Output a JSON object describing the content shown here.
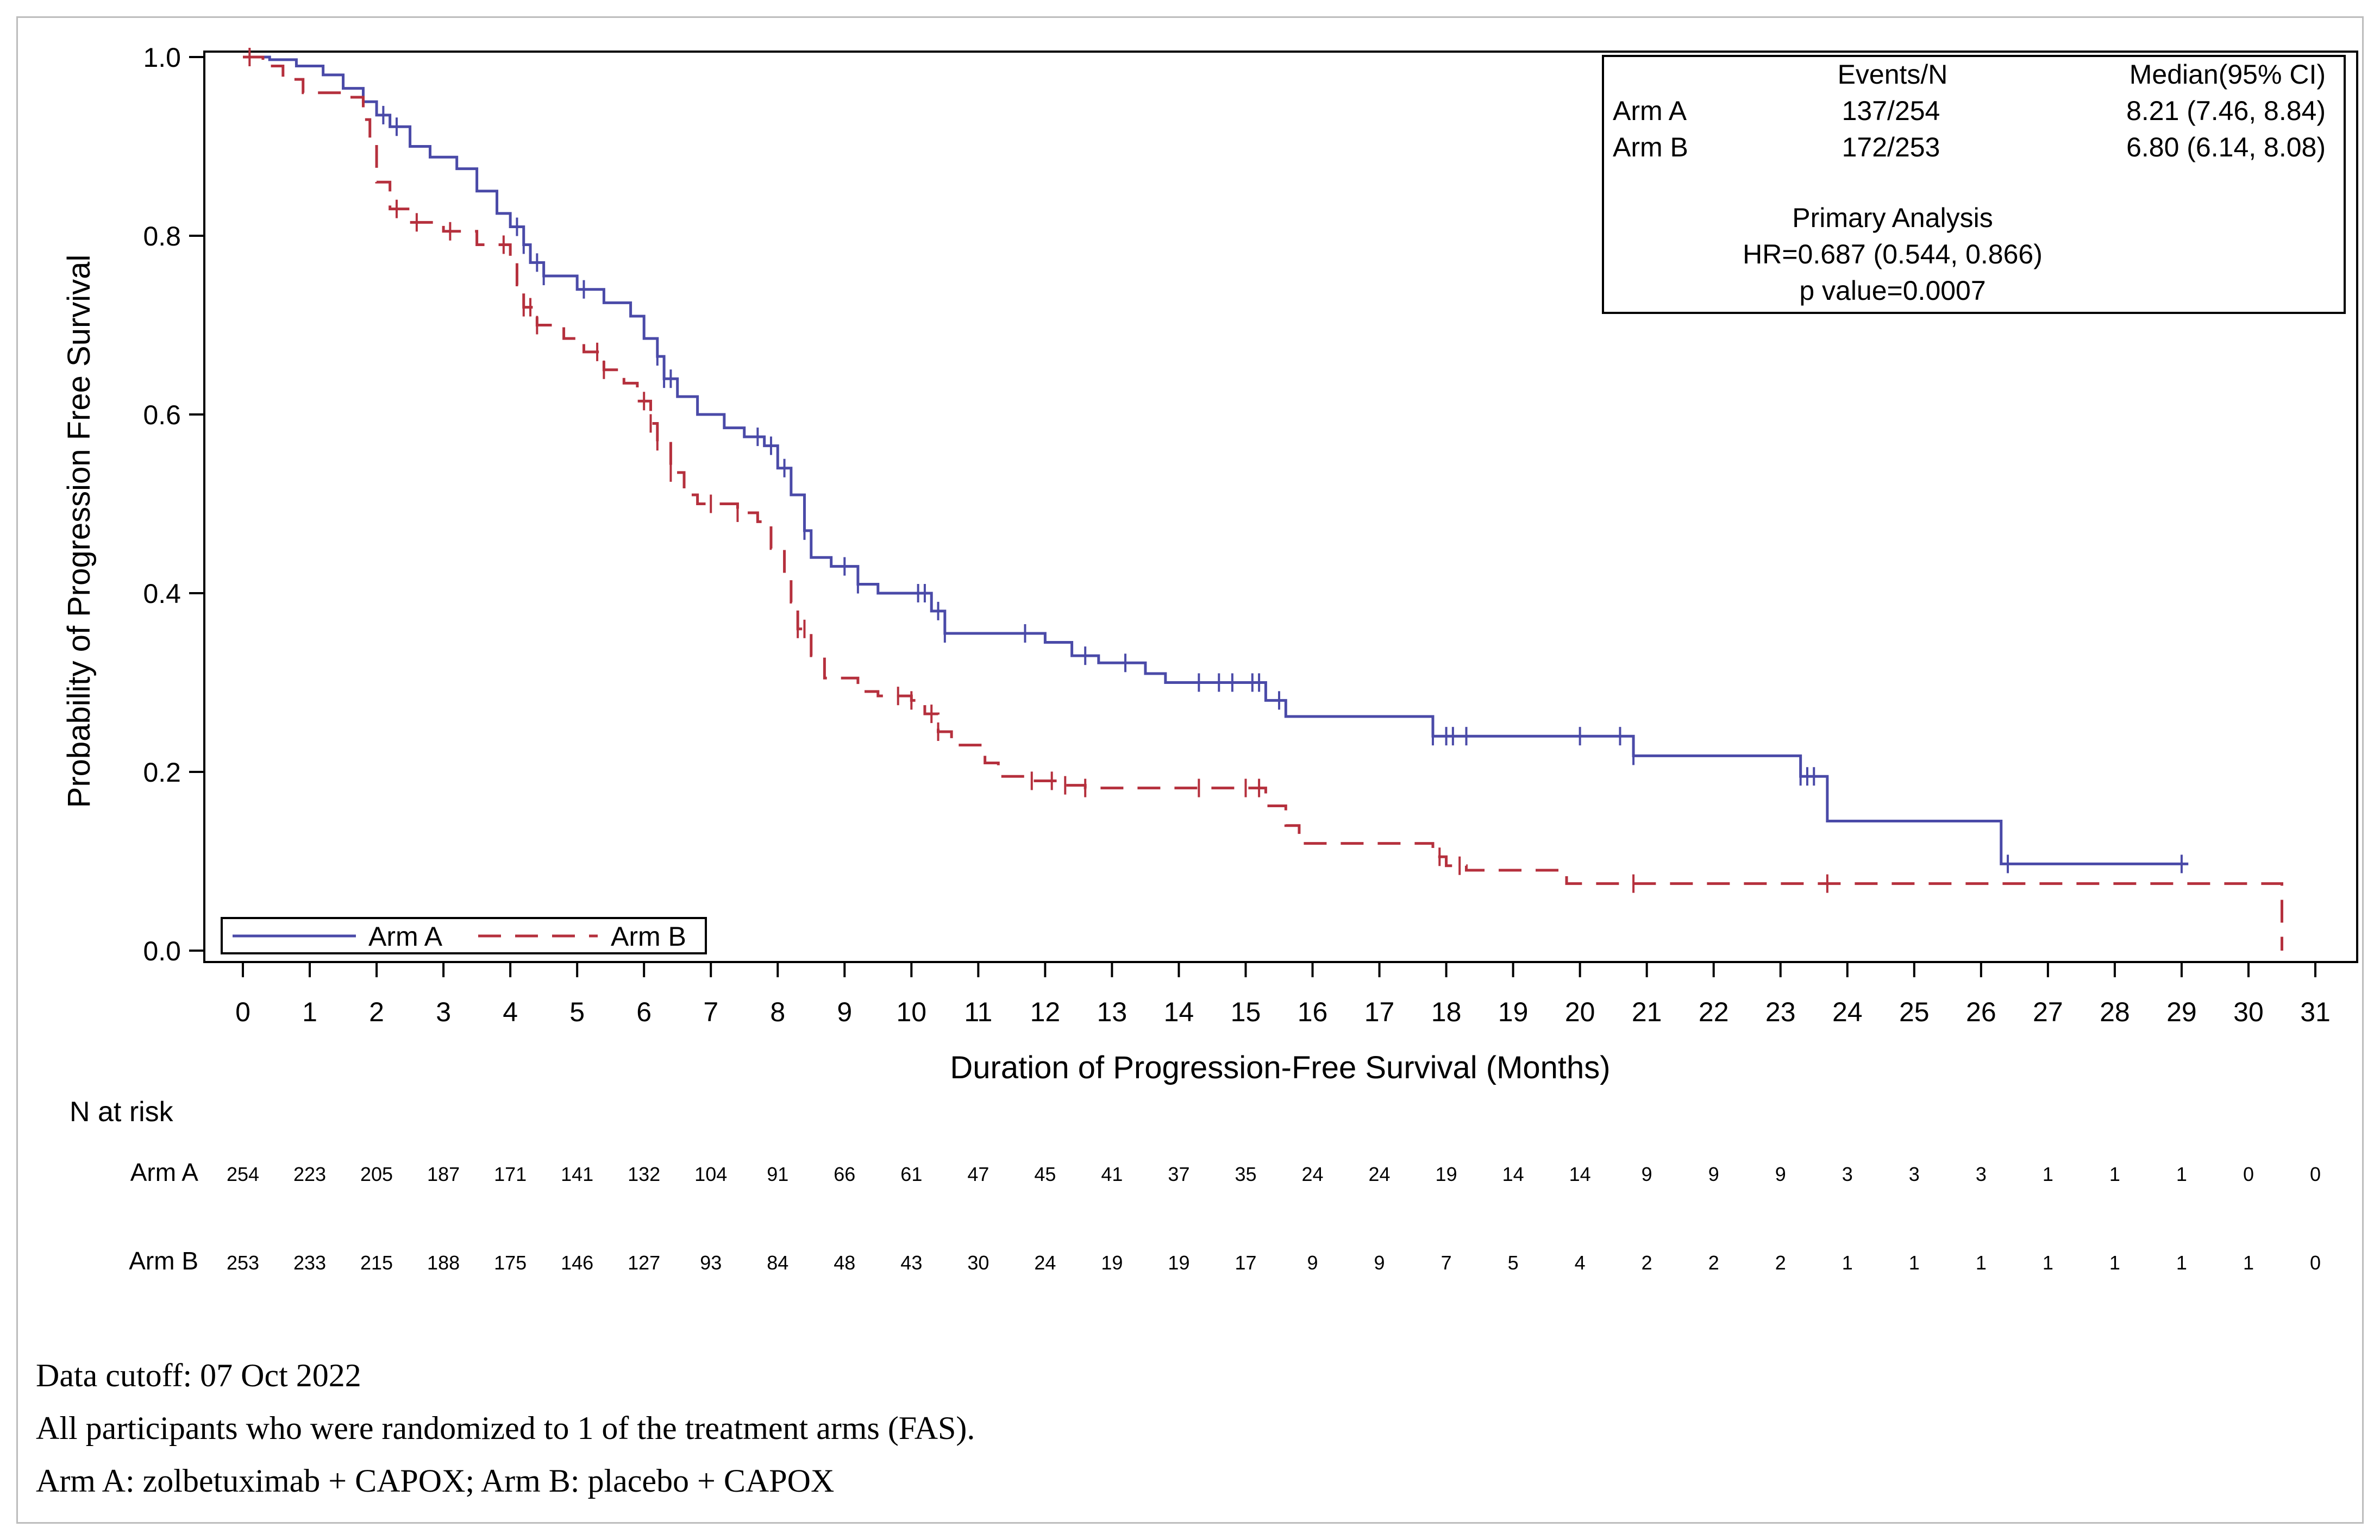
{
  "chart_data": {
    "type": "line",
    "subtype": "kaplan-meier step",
    "xlabel": "Duration of Progression-Free Survival (Months)",
    "ylabel": "Probability of Progression Free Survival",
    "xlim": [
      0,
      31
    ],
    "ylim": [
      0,
      1
    ],
    "x_ticks": [
      0,
      1,
      2,
      3,
      4,
      5,
      6,
      7,
      8,
      9,
      10,
      11,
      12,
      13,
      14,
      15,
      16,
      17,
      18,
      19,
      20,
      21,
      22,
      23,
      24,
      25,
      26,
      27,
      28,
      29,
      30,
      31
    ],
    "y_ticks": [
      "0.0",
      "0.2",
      "0.4",
      "0.6",
      "0.8",
      "1.0"
    ],
    "grid": false,
    "legend_position": "bottom-left",
    "stats_box": {
      "header": [
        "",
        "Events/N",
        "Median(95% CI)"
      ],
      "rows": [
        [
          "Arm A",
          "137/254",
          "8.21 (7.46, 8.84)"
        ],
        [
          "Arm B",
          "172/253",
          "6.80 (6.14, 8.08)"
        ]
      ],
      "analysis_title": "Primary Analysis",
      "hr": "HR=0.687 (0.544, 0.866)",
      "p_value": "p value=0.0007"
    },
    "series": [
      {
        "name": "Arm A",
        "color": "#4a4aa8",
        "dash": "solid",
        "steps": [
          [
            0,
            1.0
          ],
          [
            0.4,
            0.997
          ],
          [
            0.8,
            0.99
          ],
          [
            1.2,
            0.98
          ],
          [
            1.5,
            0.965
          ],
          [
            1.8,
            0.95
          ],
          [
            2.0,
            0.935
          ],
          [
            2.2,
            0.922
          ],
          [
            2.5,
            0.9
          ],
          [
            2.8,
            0.888
          ],
          [
            3.2,
            0.875
          ],
          [
            3.5,
            0.85
          ],
          [
            3.8,
            0.825
          ],
          [
            4.0,
            0.81
          ],
          [
            4.2,
            0.79
          ],
          [
            4.3,
            0.77
          ],
          [
            4.5,
            0.755
          ],
          [
            5.0,
            0.74
          ],
          [
            5.4,
            0.725
          ],
          [
            5.8,
            0.71
          ],
          [
            6.0,
            0.685
          ],
          [
            6.2,
            0.665
          ],
          [
            6.3,
            0.64
          ],
          [
            6.5,
            0.62
          ],
          [
            6.8,
            0.6
          ],
          [
            7.2,
            0.585
          ],
          [
            7.5,
            0.575
          ],
          [
            7.8,
            0.565
          ],
          [
            8.0,
            0.54
          ],
          [
            8.2,
            0.51
          ],
          [
            8.4,
            0.47
          ],
          [
            8.5,
            0.44
          ],
          [
            8.8,
            0.43
          ],
          [
            9.2,
            0.41
          ],
          [
            9.5,
            0.4
          ],
          [
            10.3,
            0.38
          ],
          [
            10.5,
            0.355
          ],
          [
            12.0,
            0.345
          ],
          [
            12.4,
            0.33
          ],
          [
            12.8,
            0.322
          ],
          [
            13.5,
            0.31
          ],
          [
            13.8,
            0.3
          ],
          [
            15.3,
            0.28
          ],
          [
            15.6,
            0.262
          ],
          [
            17.8,
            0.24
          ],
          [
            20.8,
            0.218
          ],
          [
            23.3,
            0.195
          ],
          [
            23.7,
            0.145
          ],
          [
            26.3,
            0.097
          ],
          [
            29.1,
            0.097
          ]
        ],
        "censor": [
          2.1,
          2.3,
          4.1,
          4.2,
          4.4,
          4.5,
          5.1,
          6.2,
          6.3,
          6.4,
          7.7,
          7.9,
          8.1,
          8.4,
          9.0,
          9.2,
          10.1,
          10.2,
          10.4,
          10.5,
          11.7,
          12.6,
          13.2,
          14.3,
          14.6,
          14.8,
          15.1,
          15.2,
          15.5,
          17.8,
          18.0,
          18.1,
          18.3,
          20.0,
          20.6,
          20.8,
          23.3,
          23.4,
          23.5,
          26.4,
          29.0
        ]
      },
      {
        "name": "Arm B",
        "color": "#b5303d",
        "dash": "dashed",
        "steps": [
          [
            0,
            1.0
          ],
          [
            0.3,
            0.99
          ],
          [
            0.6,
            0.975
          ],
          [
            0.9,
            0.96
          ],
          [
            1.5,
            0.955
          ],
          [
            1.8,
            0.93
          ],
          [
            1.9,
            0.9
          ],
          [
            2.0,
            0.86
          ],
          [
            2.2,
            0.83
          ],
          [
            2.5,
            0.815
          ],
          [
            3.0,
            0.805
          ],
          [
            3.5,
            0.79
          ],
          [
            4.0,
            0.775
          ],
          [
            4.1,
            0.745
          ],
          [
            4.2,
            0.72
          ],
          [
            4.4,
            0.7
          ],
          [
            4.8,
            0.685
          ],
          [
            5.1,
            0.67
          ],
          [
            5.4,
            0.65
          ],
          [
            5.7,
            0.635
          ],
          [
            5.9,
            0.615
          ],
          [
            6.1,
            0.59
          ],
          [
            6.2,
            0.57
          ],
          [
            6.4,
            0.535
          ],
          [
            6.6,
            0.51
          ],
          [
            6.8,
            0.5
          ],
          [
            7.4,
            0.49
          ],
          [
            7.7,
            0.48
          ],
          [
            7.9,
            0.45
          ],
          [
            8.1,
            0.42
          ],
          [
            8.2,
            0.39
          ],
          [
            8.3,
            0.36
          ],
          [
            8.5,
            0.33
          ],
          [
            8.7,
            0.305
          ],
          [
            9.2,
            0.29
          ],
          [
            9.5,
            0.285
          ],
          [
            10.0,
            0.28
          ],
          [
            10.2,
            0.265
          ],
          [
            10.4,
            0.245
          ],
          [
            10.6,
            0.23
          ],
          [
            11.1,
            0.21
          ],
          [
            11.3,
            0.195
          ],
          [
            11.7,
            0.19
          ],
          [
            12.3,
            0.185
          ],
          [
            12.6,
            0.182
          ],
          [
            15.3,
            0.162
          ],
          [
            15.6,
            0.14
          ],
          [
            15.8,
            0.12
          ],
          [
            17.8,
            0.105
          ],
          [
            18.0,
            0.095
          ],
          [
            18.3,
            0.09
          ],
          [
            19.8,
            0.075
          ],
          [
            30.5,
            0.0
          ]
        ],
        "censor": [
          0.1,
          2.3,
          2.6,
          3.1,
          3.9,
          4.2,
          4.3,
          4.4,
          5.3,
          5.4,
          6.0,
          6.1,
          6.2,
          6.4,
          7.0,
          7.4,
          8.3,
          8.4,
          9.8,
          10.0,
          10.3,
          10.4,
          11.8,
          12.1,
          12.3,
          12.6,
          14.3,
          15.0,
          15.2,
          17.9,
          18.2,
          20.8,
          23.7
        ]
      }
    ]
  },
  "risk_table": {
    "title": "N at risk",
    "rows": [
      {
        "label": "Arm A",
        "values": [
          "254",
          "223",
          "205",
          "187",
          "171",
          "141",
          "132",
          "104",
          "91",
          "66",
          "61",
          "47",
          "45",
          "41",
          "37",
          "35",
          "24",
          "24",
          "19",
          "14",
          "14",
          "9",
          "9",
          "9",
          "3",
          "3",
          "3",
          "1",
          "1",
          "1",
          "0",
          "0"
        ]
      },
      {
        "label": "Arm B",
        "values": [
          "253",
          "233",
          "215",
          "188",
          "175",
          "146",
          "127",
          "93",
          "84",
          "48",
          "43",
          "30",
          "24",
          "19",
          "19",
          "17",
          "9",
          "9",
          "7",
          "5",
          "4",
          "2",
          "2",
          "2",
          "1",
          "1",
          "1",
          "1",
          "1",
          "1",
          "1",
          "0"
        ]
      }
    ]
  },
  "footnotes": {
    "cutoff": "Data cutoff: 07 Oct 2022",
    "population": "All participants who were randomized to 1 of the treatment arms (FAS).",
    "arms": "Arm A: zolbetuximab + CAPOX; Arm B: placebo + CAPOX"
  }
}
